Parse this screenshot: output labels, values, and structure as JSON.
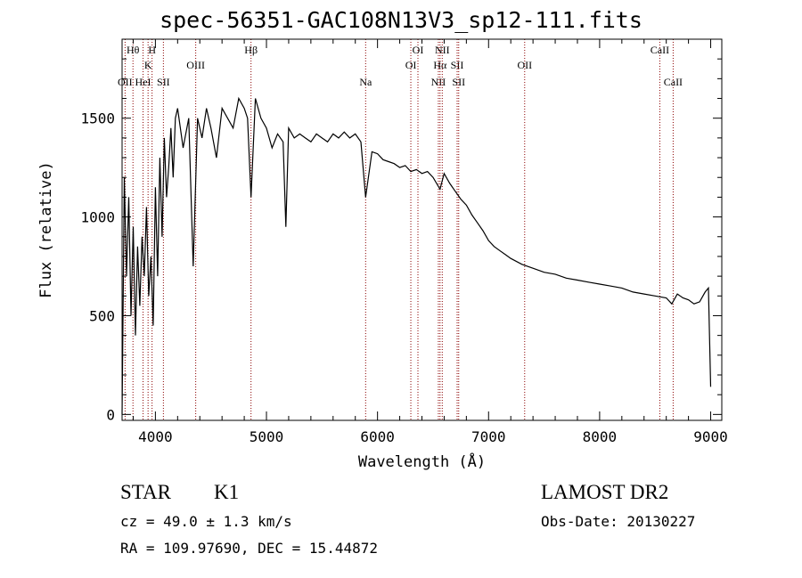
{
  "chart_data": {
    "type": "line",
    "title": "spec-56351-GAC108N13V3_sp12-111.fits",
    "xlabel": "Wavelength (Å)",
    "ylabel": "Flux (relative)",
    "xlim": [
      3700,
      9100
    ],
    "ylim": [
      -30,
      1900
    ],
    "xticks": [
      4000,
      5000,
      6000,
      7000,
      8000,
      9000
    ],
    "yticks": [
      0,
      500,
      1000,
      1500
    ],
    "grid": false,
    "series": [
      {
        "x": [
          3700,
          3720,
          3740,
          3760,
          3780,
          3800,
          3820,
          3840,
          3860,
          3880,
          3900,
          3920,
          3940,
          3960,
          3980,
          4000,
          4020,
          4040,
          4060,
          4080,
          4100,
          4120,
          4140,
          4160,
          4180,
          4200,
          4250,
          4300,
          4340,
          4380,
          4420,
          4460,
          4500,
          4550,
          4600,
          4650,
          4700,
          4750,
          4800,
          4830,
          4861,
          4900,
          4950,
          5000,
          5050,
          5100,
          5150,
          5175,
          5200,
          5250,
          5300,
          5350,
          5400,
          5450,
          5500,
          5550,
          5600,
          5650,
          5700,
          5750,
          5800,
          5850,
          5893,
          5950,
          6000,
          6050,
          6100,
          6150,
          6200,
          6250,
          6300,
          6350,
          6400,
          6450,
          6500,
          6563,
          6600,
          6650,
          6700,
          6750,
          6800,
          6850,
          6900,
          6950,
          7000,
          7050,
          7100,
          7150,
          7200,
          7300,
          7400,
          7500,
          7600,
          7700,
          7800,
          7900,
          8000,
          8100,
          8200,
          8300,
          8400,
          8500,
          8600,
          8650,
          8700,
          8750,
          8800,
          8850,
          8900,
          8950,
          8980,
          9000
        ],
        "y": [
          0,
          1200,
          700,
          1100,
          500,
          950,
          400,
          850,
          550,
          900,
          700,
          1050,
          600,
          800,
          450,
          1150,
          700,
          1300,
          900,
          1400,
          1100,
          1250,
          1450,
          1200,
          1500,
          1550,
          1350,
          1500,
          750,
          1500,
          1400,
          1550,
          1450,
          1300,
          1550,
          1500,
          1450,
          1600,
          1550,
          1500,
          1100,
          1600,
          1500,
          1450,
          1350,
          1420,
          1380,
          950,
          1450,
          1400,
          1420,
          1400,
          1380,
          1420,
          1400,
          1380,
          1420,
          1400,
          1430,
          1400,
          1420,
          1380,
          1100,
          1330,
          1320,
          1290,
          1280,
          1270,
          1250,
          1260,
          1230,
          1240,
          1220,
          1230,
          1200,
          1140,
          1220,
          1170,
          1130,
          1090,
          1060,
          1010,
          970,
          930,
          880,
          850,
          830,
          810,
          790,
          760,
          740,
          720,
          710,
          690,
          680,
          670,
          660,
          650,
          640,
          620,
          610,
          600,
          590,
          560,
          610,
          590,
          580,
          560,
          570,
          620,
          640,
          140
        ]
      }
    ],
    "annotations": [
      {
        "label": "Hθ",
        "x": 3798,
        "row": 0
      },
      {
        "label": "H",
        "x": 3970,
        "row": 0
      },
      {
        "label": "K",
        "x": 3934,
        "row": 1
      },
      {
        "label": "OII",
        "x": 3727,
        "row": 2
      },
      {
        "label": "HeI",
        "x": 3889,
        "row": 2
      },
      {
        "label": "SII",
        "x": 4072,
        "row": 2
      },
      {
        "label": "OIII",
        "x": 4363,
        "row": 1
      },
      {
        "label": "Hβ",
        "x": 4861,
        "row": 0
      },
      {
        "label": "Na",
        "x": 5893,
        "row": 2
      },
      {
        "label": "OI",
        "x": 6300,
        "row": 1
      },
      {
        "label": "OI",
        "x": 6364,
        "row": 0
      },
      {
        "label": "NII",
        "x": 6548,
        "row": 2
      },
      {
        "label": "Hα",
        "x": 6563,
        "row": 1
      },
      {
        "label": "NII",
        "x": 6583,
        "row": 0
      },
      {
        "label": "SII",
        "x": 6717,
        "row": 1
      },
      {
        "label": "SII",
        "x": 6731,
        "row": 2
      },
      {
        "label": "OII",
        "x": 7325,
        "row": 1
      },
      {
        "label": "CaII",
        "x": 8542,
        "row": 0
      },
      {
        "label": "CaII",
        "x": 8662,
        "row": 2
      }
    ]
  },
  "info": {
    "class_label": "STAR",
    "subclass": "K1",
    "survey": "LAMOST DR2",
    "cz": "cz = 49.0 ± 1.3 km/s",
    "obs_date": "Obs-Date: 20130227",
    "coords": "RA = 109.97690, DEC =  15.44872"
  },
  "colors": {
    "spectrum": "#000000",
    "line_markers": "#8b0000",
    "background": "#ffffff"
  }
}
